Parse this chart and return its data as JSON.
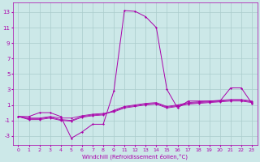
{
  "xlabel": "Windchill (Refroidissement éolien,°C)",
  "bg_color": "#cce8e8",
  "grid_color": "#aacccc",
  "line_color": "#aa00aa",
  "x_labels": [
    "0",
    "1",
    "2",
    "3",
    "4",
    "5",
    "6",
    "7",
    "8",
    "9",
    "11",
    "12",
    "13",
    "14",
    "15",
    "16",
    "17",
    "18",
    "19",
    "20",
    "21",
    "22",
    "23"
  ],
  "y_ticks": [
    -3,
    -1,
    1,
    3,
    5,
    7,
    9,
    11,
    13
  ],
  "ylim": [
    -4.2,
    14.2
  ],
  "main_y": [
    -0.5,
    -0.5,
    0.0,
    0.0,
    -0.5,
    -3.3,
    -2.5,
    -1.5,
    -1.5,
    2.8,
    13.2,
    13.1,
    12.4,
    11.0,
    3.0,
    0.6,
    1.5,
    1.5,
    1.5,
    1.5,
    3.2,
    3.2,
    1.2
  ],
  "flat1_y": [
    -0.5,
    -0.7,
    -0.7,
    -0.5,
    -0.7,
    -0.7,
    -0.4,
    -0.2,
    -0.1,
    0.1,
    0.6,
    0.8,
    1.0,
    1.1,
    0.6,
    0.8,
    1.1,
    1.2,
    1.3,
    1.4,
    1.5,
    1.5,
    1.3
  ],
  "flat2_y": [
    -0.5,
    -0.8,
    -0.8,
    -0.6,
    -0.9,
    -1.0,
    -0.5,
    -0.3,
    -0.2,
    0.2,
    0.7,
    0.9,
    1.1,
    1.2,
    0.7,
    0.9,
    1.2,
    1.3,
    1.4,
    1.5,
    1.6,
    1.6,
    1.4
  ],
  "flat3_y": [
    -0.5,
    -0.9,
    -0.9,
    -0.7,
    -1.0,
    -1.1,
    -0.6,
    -0.4,
    -0.3,
    0.3,
    0.8,
    1.0,
    1.2,
    1.3,
    0.8,
    1.0,
    1.3,
    1.4,
    1.5,
    1.6,
    1.7,
    1.7,
    1.5
  ]
}
